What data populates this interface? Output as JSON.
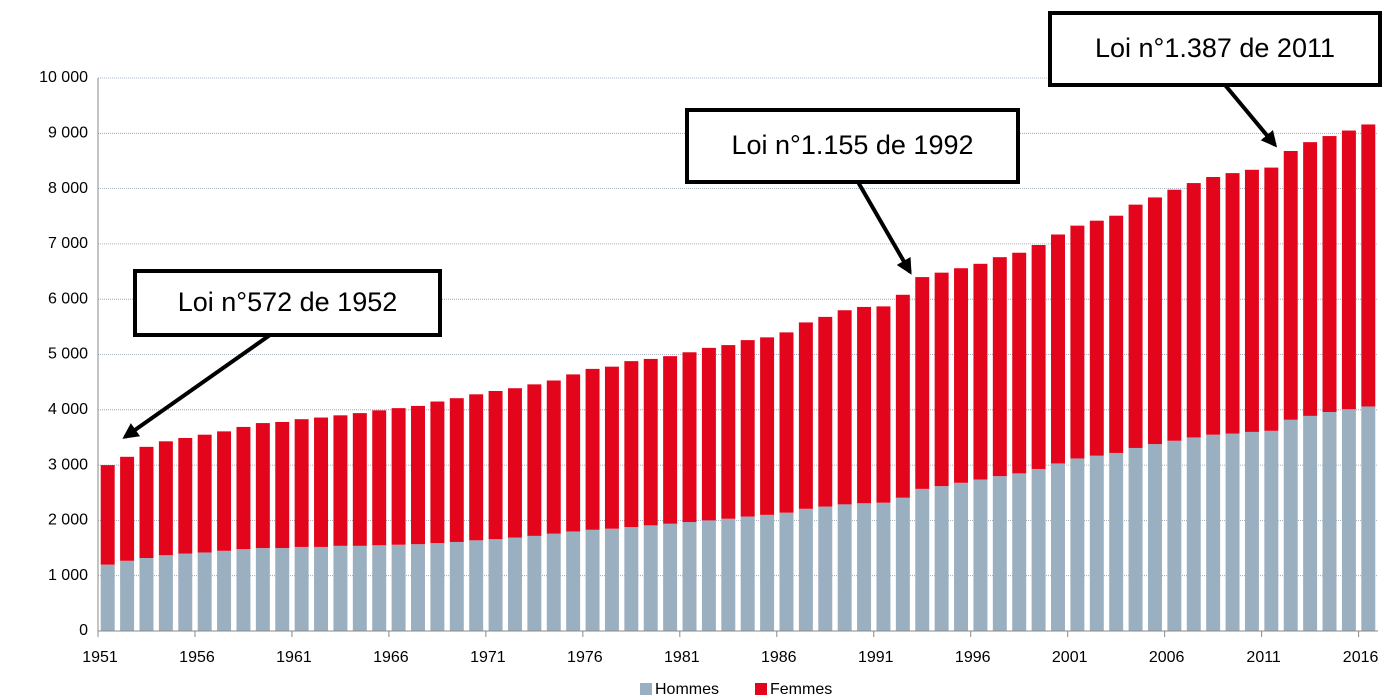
{
  "chart_data": {
    "type": "stacked_bar",
    "categories": [
      "1951",
      null,
      null,
      null,
      null,
      "1956",
      null,
      null,
      null,
      null,
      "1961",
      null,
      null,
      null,
      null,
      "1966",
      null,
      null,
      null,
      null,
      "1971",
      null,
      null,
      null,
      null,
      "1976",
      null,
      null,
      null,
      null,
      "1981",
      null,
      null,
      null,
      null,
      "1986",
      null,
      null,
      null,
      null,
      "1991",
      null,
      null,
      null,
      null,
      "1996",
      null,
      null,
      null,
      null,
      "2001",
      null,
      null,
      null,
      null,
      "2006",
      null,
      null,
      null,
      null,
      "2011",
      null,
      null,
      null,
      null,
      "2016"
    ],
    "series": [
      {
        "name": "Hommes",
        "color": "#9aafc0",
        "values": [
          1200,
          1270,
          1320,
          1370,
          1400,
          1420,
          1450,
          1480,
          1500,
          1500,
          1520,
          1520,
          1540,
          1540,
          1550,
          1560,
          1570,
          1590,
          1610,
          1640,
          1660,
          1690,
          1720,
          1760,
          1800,
          1830,
          1850,
          1880,
          1910,
          1940,
          1970,
          2000,
          2030,
          2070,
          2100,
          2140,
          2210,
          2250,
          2290,
          2310,
          2320,
          2410,
          2570,
          2620,
          2680,
          2740,
          2800,
          2850,
          2930,
          3030,
          3120,
          3170,
          3220,
          3310,
          3380,
          3440,
          3500,
          3550,
          3570,
          3600,
          3620,
          3820,
          3890,
          3960,
          4010,
          4060
        ]
      },
      {
        "name": "Femmes",
        "color": "#e3051b",
        "values": [
          1800,
          1880,
          2010,
          2060,
          2090,
          2130,
          2160,
          2210,
          2260,
          2280,
          2310,
          2340,
          2360,
          2400,
          2440,
          2470,
          2500,
          2560,
          2600,
          2640,
          2680,
          2700,
          2740,
          2770,
          2840,
          2910,
          2930,
          3000,
          3010,
          3030,
          3070,
          3120,
          3140,
          3190,
          3210,
          3260,
          3370,
          3430,
          3510,
          3550,
          3550,
          3670,
          3830,
          3860,
          3880,
          3900,
          3960,
          3990,
          4050,
          4140,
          4210,
          4250,
          4290,
          4400,
          4460,
          4540,
          4600,
          4660,
          4710,
          4740,
          4760,
          4860,
          4950,
          4990,
          5040,
          5100
        ]
      }
    ],
    "ylim": [
      0,
      10000
    ],
    "yticks": [
      0,
      {
        "value": 1000,
        "label": "1 000"
      },
      {
        "value": 2000,
        "label": "2 000"
      },
      {
        "value": 3000,
        "label": "3 000"
      },
      {
        "value": 4000,
        "label": "4 000"
      },
      {
        "value": 5000,
        "label": "5 000"
      },
      {
        "value": 6000,
        "label": "6 000"
      },
      {
        "value": 7000,
        "label": "7 000"
      },
      {
        "value": 8000,
        "label": "8 000"
      },
      {
        "value": 9000,
        "label": "9 000"
      },
      {
        "value": 10000,
        "label": "10 000"
      }
    ],
    "grid": true,
    "legend": "bottom",
    "annotations": [
      "Loi n°572 de 1952",
      "Loi n°1.155 de 1992",
      "Loi n°1.387 de 2011"
    ]
  }
}
